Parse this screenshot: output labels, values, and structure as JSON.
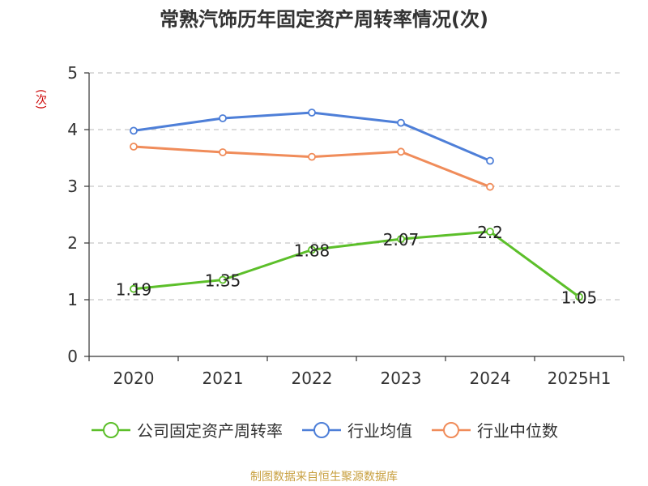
{
  "chart_data": {
    "type": "line",
    "title": "常熟汽饰历年固定资产周转率情况(次)",
    "ylabel": "(次)",
    "categories": [
      "2020",
      "2021",
      "2022",
      "2023",
      "2024",
      "2025H1"
    ],
    "ylim": [
      0,
      5
    ],
    "yticks": [
      0,
      1,
      2,
      3,
      4,
      5
    ],
    "grid": true,
    "legend_position": "bottom",
    "series": [
      {
        "name": "公司固定资产周转率",
        "color": "#5cbf2a",
        "values": [
          1.19,
          1.35,
          1.88,
          2.07,
          2.2,
          1.05
        ],
        "labels": [
          "1.19",
          "1.35",
          "1.88",
          "2.07",
          "2.2",
          "1.05"
        ]
      },
      {
        "name": "行业均值",
        "color": "#4e7fd8",
        "values": [
          3.98,
          4.2,
          4.3,
          4.12,
          3.45,
          null
        ]
      },
      {
        "name": "行业中位数",
        "color": "#f08c5a",
        "values": [
          3.7,
          3.6,
          3.52,
          3.61,
          2.99,
          null
        ]
      }
    ]
  },
  "source": "制图数据来自恒生聚源数据库"
}
